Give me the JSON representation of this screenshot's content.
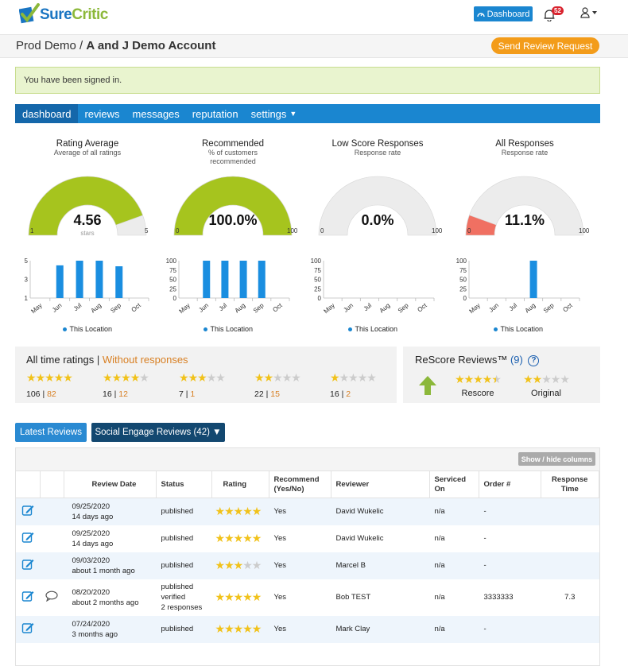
{
  "brand": {
    "word1": "Sure",
    "word2": "Critic"
  },
  "header": {
    "dashboard_label": "Dashboard",
    "notifications_count": "52",
    "breadcrumb_org": "Prod Demo",
    "breadcrumb_sep": "/",
    "breadcrumb_account": "A and J Demo Account",
    "send_request_label": "Send Review Request"
  },
  "alert": {
    "message": "You have been signed in."
  },
  "nav": {
    "items": [
      "dashboard",
      "reviews",
      "messages",
      "reputation",
      "settings"
    ]
  },
  "gauges": [
    {
      "title": "Rating Average",
      "subtitle": "Average of all ratings",
      "subtitle2": "",
      "value_text": "4.56",
      "unit": "stars",
      "min": "1",
      "max": "5",
      "fill_fraction": 0.89,
      "color": "#a6c41e"
    },
    {
      "title": "Recommended",
      "subtitle": "% of customers",
      "subtitle2": "recommended",
      "value_text": "100.0%",
      "unit": "",
      "min": "0",
      "max": "100",
      "fill_fraction": 1.0,
      "color": "#a6c41e"
    },
    {
      "title": "Low Score Responses",
      "subtitle": "Response rate",
      "subtitle2": "",
      "value_text": "0.0%",
      "unit": "",
      "min": "0",
      "max": "100",
      "fill_fraction": 0.0,
      "color": "#f07062"
    },
    {
      "title": "All Responses",
      "subtitle": "Response rate",
      "subtitle2": "",
      "value_text": "11.1%",
      "unit": "",
      "min": "0",
      "max": "100",
      "fill_fraction": 0.111,
      "color": "#f07062"
    }
  ],
  "chart_data": [
    {
      "type": "bar",
      "categories": [
        "May",
        "Jun",
        "Jul",
        "Aug",
        "Sep",
        "Oct"
      ],
      "yticks": [
        "5",
        "3",
        "1"
      ],
      "ylim": [
        1,
        5
      ],
      "series": [
        {
          "name": "This Location",
          "values": [
            null,
            4.5,
            5,
            5,
            4.4,
            null
          ]
        }
      ],
      "legend": "bottom"
    },
    {
      "type": "bar",
      "categories": [
        "May",
        "Jun",
        "Jul",
        "Aug",
        "Sep",
        "Oct"
      ],
      "yticks": [
        "100",
        "75",
        "50",
        "25",
        "0"
      ],
      "ylim": [
        0,
        100
      ],
      "series": [
        {
          "name": "This Location",
          "values": [
            null,
            100,
            100,
            100,
            100,
            null
          ]
        }
      ],
      "legend": "bottom"
    },
    {
      "type": "bar",
      "categories": [
        "May",
        "Jun",
        "Jul",
        "Aug",
        "Sep",
        "Oct"
      ],
      "yticks": [
        "100",
        "75",
        "50",
        "25",
        "0"
      ],
      "ylim": [
        0,
        100
      ],
      "series": [
        {
          "name": "This Location",
          "values": [
            null,
            null,
            null,
            null,
            null,
            null
          ]
        }
      ],
      "legend": "bottom"
    },
    {
      "type": "bar",
      "categories": [
        "May",
        "Jun",
        "Jul",
        "Aug",
        "Sep",
        "Oct"
      ],
      "yticks": [
        "100",
        "75",
        "50",
        "25",
        "0"
      ],
      "ylim": [
        0,
        100
      ],
      "series": [
        {
          "name": "This Location",
          "values": [
            null,
            null,
            null,
            100,
            null,
            null
          ]
        }
      ],
      "legend": "bottom"
    }
  ],
  "ratings": {
    "title": "All time ratings",
    "sep": "|",
    "without_label": "Without responses",
    "groups": [
      {
        "stars": 5,
        "total": "106",
        "without": "82"
      },
      {
        "stars": 4,
        "total": "16",
        "without": "12"
      },
      {
        "stars": 3,
        "total": "7",
        "without": "1"
      },
      {
        "stars": 2,
        "total": "22",
        "without": "15"
      },
      {
        "stars": 1,
        "total": "16",
        "without": "2"
      }
    ]
  },
  "rescore": {
    "title": "ReScore Reviews™",
    "count": "(9)",
    "help": "?",
    "rescore_label": "Rescore",
    "original_label": "Original",
    "rescore_stars": 4.5,
    "original_stars": 2
  },
  "tabs": {
    "latest": "Latest Reviews",
    "social": "Social Engage Reviews (42) ▼"
  },
  "table": {
    "show_hide": "Show / hide columns",
    "columns": [
      "",
      "",
      "Review Date",
      "Status",
      "Rating",
      "Recommend (Yes/No)",
      "Reviewer",
      "Serviced On",
      "Order #",
      "Response Time"
    ],
    "rows": [
      {
        "date": "09/25/2020",
        "ago": "14 days ago",
        "status": [
          "published"
        ],
        "rating": 5,
        "recommend": "Yes",
        "reviewer": "David Wukelic",
        "serviced": "n/a",
        "order": "-",
        "response": "",
        "chat": false
      },
      {
        "date": "09/25/2020",
        "ago": "14 days ago",
        "status": [
          "published"
        ],
        "rating": 5,
        "recommend": "Yes",
        "reviewer": "David Wukelic",
        "serviced": "n/a",
        "order": "-",
        "response": "",
        "chat": false
      },
      {
        "date": "09/03/2020",
        "ago": "about 1 month ago",
        "status": [
          "published"
        ],
        "rating": 3,
        "recommend": "Yes",
        "reviewer": "Marcel B",
        "serviced": "n/a",
        "order": "-",
        "response": "",
        "chat": false
      },
      {
        "date": "08/20/2020",
        "ago": "about 2 months ago",
        "status": [
          "published",
          "verified",
          "2 responses"
        ],
        "rating": 5,
        "recommend": "Yes",
        "reviewer": "Bob TEST",
        "serviced": "n/a",
        "order": "3333333",
        "response": "7.3",
        "chat": true
      },
      {
        "date": "07/24/2020",
        "ago": "3 months ago",
        "status": [
          "published"
        ],
        "rating": 5,
        "recommend": "Yes",
        "reviewer": "Mark Clay",
        "serviced": "n/a",
        "order": "-",
        "response": "",
        "chat": false
      }
    ]
  },
  "colors": {
    "primary": "#1a86d0",
    "orange": "#f39c1a",
    "green": "#a6c41e",
    "star": "#f1c21a"
  }
}
